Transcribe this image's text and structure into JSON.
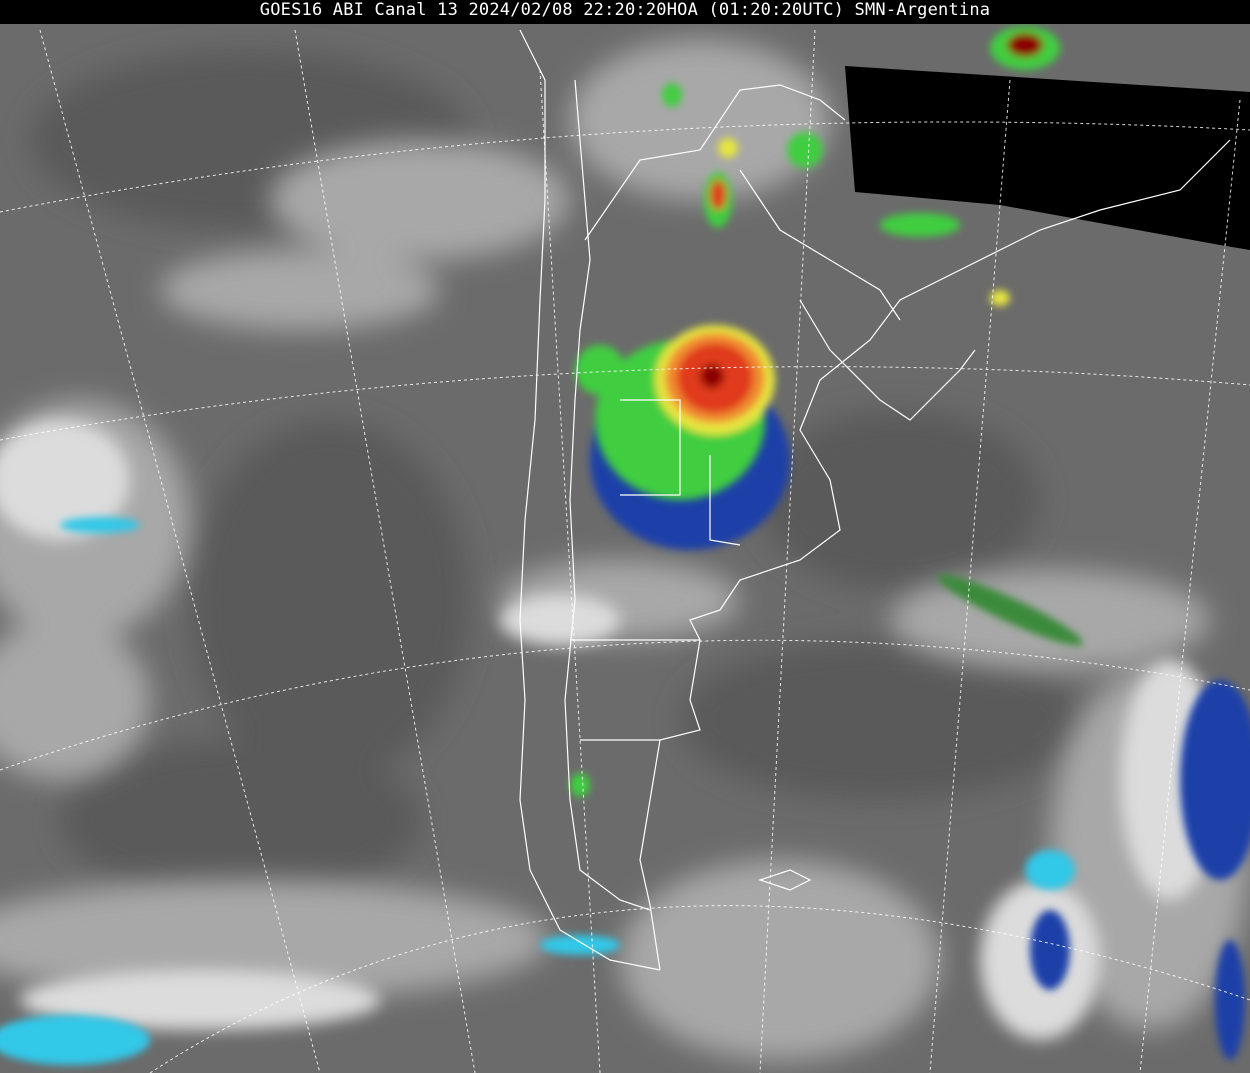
{
  "header": {
    "title": "GOES16 ABI Canal 13 2024/02/08 22:20:20HOA (01:20:20UTC) SMN-Argentina"
  },
  "colors": {
    "background_gray": "#6b6b6b",
    "cloud_light": "#c8c8c8",
    "no_data": "#000000",
    "storm_core": "#8b0000",
    "storm_red": "#e03a1e",
    "storm_orange": "#f08a30",
    "storm_yellow": "#e6e640",
    "storm_green": "#3fce3f",
    "storm_blue": "#1a3fa8",
    "storm_cyan": "#30c8e8",
    "borders": "#ffffff"
  },
  "map": {
    "product": "infrared-satellite-image",
    "graticule": "dashed",
    "region": "southern-south-america"
  }
}
